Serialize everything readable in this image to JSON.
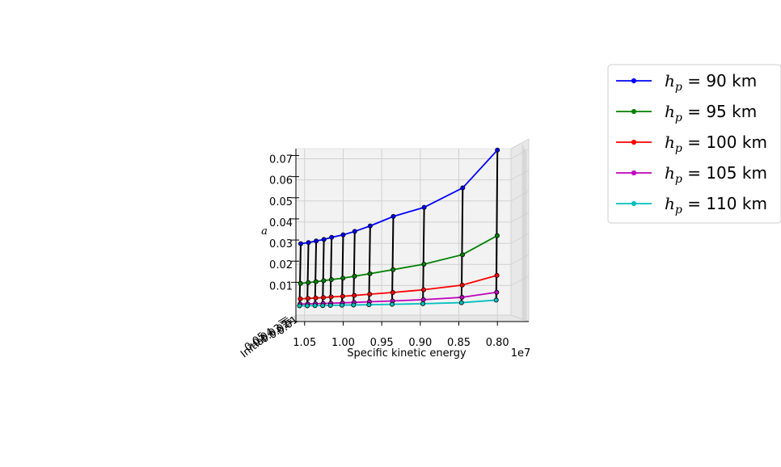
{
  "chart_data": {
    "type": "line",
    "projection": "3d",
    "xlabel": "Specific kinetic energy",
    "x_offset_label": "1e7",
    "ylabel": "a",
    "zlabel": "Initial",
    "x_tick_labels": [
      "1.05",
      "1.00",
      "0.95",
      "0.90",
      "0.85",
      "0.80"
    ],
    "y_tick_labels": [
      "0.07",
      "0.06",
      "0.05",
      "0.04",
      "0.03",
      "0.02",
      "0.01"
    ],
    "depth_tick_labels": [
      "0.05",
      "0.04",
      "0.03",
      "0.02",
      "0.01"
    ],
    "xlim": [
      1.055,
      0.795
    ],
    "ylim": [
      -0.004,
      0.074
    ],
    "x": [
      1.055,
      1.045,
      1.035,
      1.025,
      1.015,
      1.0,
      0.985,
      0.965,
      0.935,
      0.895,
      0.845,
      0.8
    ],
    "series": [
      {
        "name": "h_p = 90 km",
        "label_main": "h",
        "label_sub": "p",
        "label_rest": " = 90 km",
        "color": "#0000ff",
        "values": [
          0.0298,
          0.0303,
          0.0311,
          0.0318,
          0.0328,
          0.034,
          0.0356,
          0.0382,
          0.0427,
          0.047,
          0.0562,
          0.0741
        ]
      },
      {
        "name": "h_p = 95 km",
        "label_main": "h",
        "label_sub": "p",
        "label_rest": " = 95 km",
        "color": "#008000",
        "values": [
          0.011,
          0.0114,
          0.0118,
          0.0123,
          0.0128,
          0.0135,
          0.0144,
          0.0156,
          0.0175,
          0.0201,
          0.0246,
          0.0336
        ]
      },
      {
        "name": "h_p = 100 km",
        "label_main": "h",
        "label_sub": "p",
        "label_rest": " = 100 km",
        "color": "#ff0000",
        "values": [
          0.0037,
          0.0039,
          0.0041,
          0.0043,
          0.0046,
          0.0049,
          0.0053,
          0.0059,
          0.0067,
          0.008,
          0.0102,
          0.0148
        ]
      },
      {
        "name": "h_p = 105 km",
        "label_main": "h",
        "label_sub": "p",
        "label_rest": " = 105 km",
        "color": "#bf00bf",
        "values": [
          0.0012,
          0.0013,
          0.0014,
          0.0015,
          0.0016,
          0.0018,
          0.002,
          0.0023,
          0.0027,
          0.0033,
          0.0044,
          0.0068
        ]
      },
      {
        "name": "h_p = 110 km",
        "label_main": "h",
        "label_sub": "p",
        "label_rest": " = 110 km",
        "color": "#00bfbf",
        "values": [
          0.0004,
          0.0004,
          0.0005,
          0.0005,
          0.0006,
          0.0007,
          0.0008,
          0.0009,
          0.0011,
          0.0014,
          0.0019,
          0.0031
        ]
      }
    ],
    "connector_color": "#000000",
    "marker_edge_color": "#000000",
    "grid": true,
    "legend_position": "top-right"
  }
}
